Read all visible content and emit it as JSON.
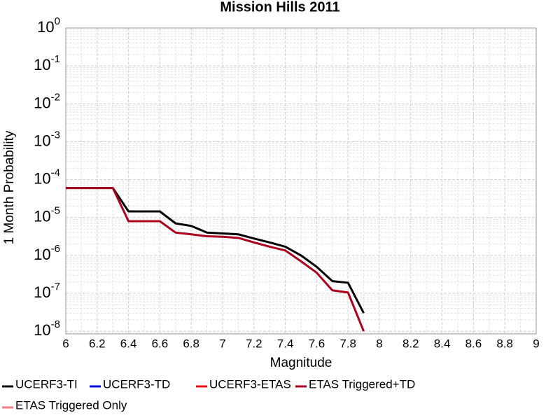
{
  "chart_data": {
    "type": "line",
    "title": "Mission Hills 2011",
    "x_label": "Magnitude",
    "y_label": "1 Month Probability",
    "log_y": true,
    "grid": true,
    "x": [
      6.0,
      6.1,
      6.2,
      6.3,
      6.4,
      6.5,
      6.6,
      6.7,
      6.8,
      6.9,
      7.0,
      7.1,
      7.2,
      7.3,
      7.4,
      7.5,
      7.6,
      7.7,
      7.8,
      7.9
    ],
    "series": [
      {
        "name": "UCERF3-TI",
        "color": "#000000",
        "values": [
          6e-05,
          6e-05,
          6e-05,
          6e-05,
          1.45e-05,
          1.45e-05,
          1.45e-05,
          7e-06,
          6e-06,
          4e-06,
          3.8e-06,
          3.6e-06,
          2.8e-06,
          2.2e-06,
          1.7e-06,
          1e-06,
          5e-07,
          2.1e-07,
          1.9e-07,
          3e-08
        ]
      },
      {
        "name": "UCERF3-TD",
        "color": "#0000dd",
        "values": [
          null,
          null,
          null,
          null,
          null,
          null,
          null,
          null,
          null,
          null,
          null,
          null,
          null,
          null,
          null,
          null,
          null,
          null,
          null,
          null
        ]
      },
      {
        "name": "UCERF3-ETAS",
        "color": "#ee1111",
        "values": [
          null,
          null,
          null,
          null,
          null,
          null,
          null,
          null,
          null,
          null,
          null,
          null,
          null,
          null,
          null,
          null,
          null,
          null,
          null,
          null
        ]
      },
      {
        "name": "ETAS Triggered+TD",
        "color": "#a8001e",
        "values": [
          6e-05,
          6e-05,
          6e-05,
          6e-05,
          8e-06,
          8e-06,
          8e-06,
          4e-06,
          3.6e-06,
          3.2e-06,
          3.1e-06,
          2.9e-06,
          2.2e-06,
          1.7e-06,
          1.35e-06,
          7e-07,
          3.5e-07,
          1.2e-07,
          1.05e-07,
          1e-08
        ]
      },
      {
        "name": "ETAS Triggered Only",
        "color": "#f08080",
        "values": [
          null,
          null,
          null,
          null,
          null,
          null,
          null,
          null,
          null,
          null,
          null,
          null,
          null,
          null,
          null,
          null,
          null,
          null,
          null,
          null
        ]
      }
    ],
    "xlim": [
      6,
      9
    ],
    "xticks": [
      6,
      6.2,
      6.4,
      6.6,
      6.8,
      7,
      7.2,
      7.4,
      7.6,
      7.8,
      8,
      8.2,
      8.4,
      8.6,
      8.8,
      9
    ],
    "ylim": [
      8.5e-09,
      1
    ],
    "yticks": [
      {
        "value": 1,
        "label": "10^0"
      },
      {
        "value": 0.1,
        "label": "10^-1"
      },
      {
        "value": 0.01,
        "label": "10^-2"
      },
      {
        "value": 0.001,
        "label": "10^-3"
      },
      {
        "value": 0.0001,
        "label": "10^-4"
      },
      {
        "value": 1e-05,
        "label": "10^-5"
      },
      {
        "value": 1e-06,
        "label": "10^-6"
      },
      {
        "value": 1e-07,
        "label": "10^-7"
      },
      {
        "value": 1e-08,
        "label": "10^-8"
      }
    ]
  }
}
